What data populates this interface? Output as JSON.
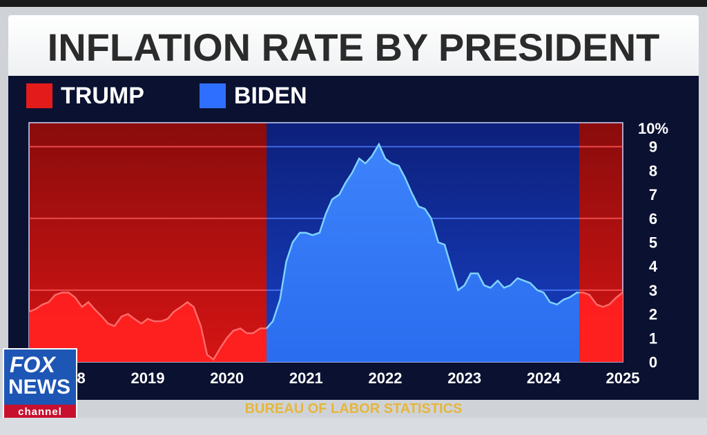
{
  "title": "INFLATION RATE BY PRESIDENT",
  "legend": {
    "items": [
      {
        "label": "TRUMP",
        "color": "#e31b1b"
      },
      {
        "label": "BIDEN",
        "color": "#2f6fff"
      }
    ]
  },
  "source": "BUREAU OF LABOR STATISTICS",
  "logo": {
    "line1": "FOX",
    "line2": "NEWS",
    "line3": "channel"
  },
  "chart_data": {
    "type": "area",
    "title": "INFLATION RATE BY PRESIDENT",
    "xlabel": "",
    "ylabel": "",
    "ylim": [
      0,
      10
    ],
    "xlim": [
      2018.0,
      2025.5
    ],
    "y_ticks": [
      "10%",
      "9",
      "8",
      "7",
      "6",
      "5",
      "4",
      "3",
      "2",
      "1",
      "0"
    ],
    "x_ticks": [
      "2018",
      "2019",
      "2020",
      "2021",
      "2022",
      "2023",
      "2024",
      "2025"
    ],
    "grid": true,
    "legend_position": "top-left",
    "periods": [
      {
        "name": "TRUMP",
        "start": 2018.0,
        "end": 2021.0
      },
      {
        "name": "BIDEN",
        "start": 2021.0,
        "end": 2024.95
      },
      {
        "name": "TRUMP",
        "start": 2024.95,
        "end": 2025.5
      }
    ],
    "series": [
      {
        "name": "TRUMP",
        "x": [
          2018.0,
          2018.08,
          2018.17,
          2018.25,
          2018.33,
          2018.42,
          2018.5,
          2018.58,
          2018.67,
          2018.75,
          2018.83,
          2018.92,
          2019.0,
          2019.08,
          2019.17,
          2019.25,
          2019.33,
          2019.42,
          2019.5,
          2019.58,
          2019.67,
          2019.75,
          2019.83,
          2019.92,
          2020.0,
          2020.08,
          2020.17,
          2020.25,
          2020.33,
          2020.42,
          2020.5,
          2020.58,
          2020.67,
          2020.75,
          2020.83,
          2020.92,
          2021.0
        ],
        "values": [
          2.1,
          2.2,
          2.4,
          2.5,
          2.8,
          2.9,
          2.9,
          2.7,
          2.3,
          2.5,
          2.2,
          1.9,
          1.6,
          1.5,
          1.9,
          2.0,
          1.8,
          1.6,
          1.8,
          1.7,
          1.7,
          1.8,
          2.1,
          2.3,
          2.5,
          2.3,
          1.5,
          0.3,
          0.1,
          0.6,
          1.0,
          1.3,
          1.4,
          1.2,
          1.2,
          1.4,
          1.4
        ]
      },
      {
        "name": "BIDEN",
        "x": [
          2021.0,
          2021.08,
          2021.17,
          2021.25,
          2021.33,
          2021.42,
          2021.5,
          2021.58,
          2021.67,
          2021.75,
          2021.83,
          2021.92,
          2022.0,
          2022.08,
          2022.17,
          2022.25,
          2022.33,
          2022.42,
          2022.5,
          2022.58,
          2022.67,
          2022.75,
          2022.83,
          2022.92,
          2023.0,
          2023.08,
          2023.17,
          2023.25,
          2023.33,
          2023.42,
          2023.5,
          2023.58,
          2023.67,
          2023.75,
          2023.83,
          2023.92,
          2024.0,
          2024.08,
          2024.17,
          2024.25,
          2024.33,
          2024.42,
          2024.5,
          2024.58,
          2024.67,
          2024.75,
          2024.83,
          2024.92,
          2024.95
        ],
        "values": [
          1.4,
          1.7,
          2.6,
          4.2,
          5.0,
          5.4,
          5.4,
          5.3,
          5.4,
          6.2,
          6.8,
          7.0,
          7.5,
          7.9,
          8.5,
          8.3,
          8.6,
          9.1,
          8.5,
          8.3,
          8.2,
          7.7,
          7.1,
          6.5,
          6.4,
          6.0,
          5.0,
          4.9,
          4.0,
          3.0,
          3.2,
          3.7,
          3.7,
          3.2,
          3.1,
          3.4,
          3.1,
          3.2,
          3.5,
          3.4,
          3.3,
          3.0,
          2.9,
          2.5,
          2.4,
          2.6,
          2.7,
          2.9,
          2.9
        ]
      },
      {
        "name": "TRUMP",
        "x": [
          2024.95,
          2025.0,
          2025.08,
          2025.17,
          2025.25,
          2025.33,
          2025.42,
          2025.5
        ],
        "values": [
          2.9,
          2.9,
          2.8,
          2.4,
          2.3,
          2.4,
          2.7,
          2.9
        ]
      }
    ]
  }
}
